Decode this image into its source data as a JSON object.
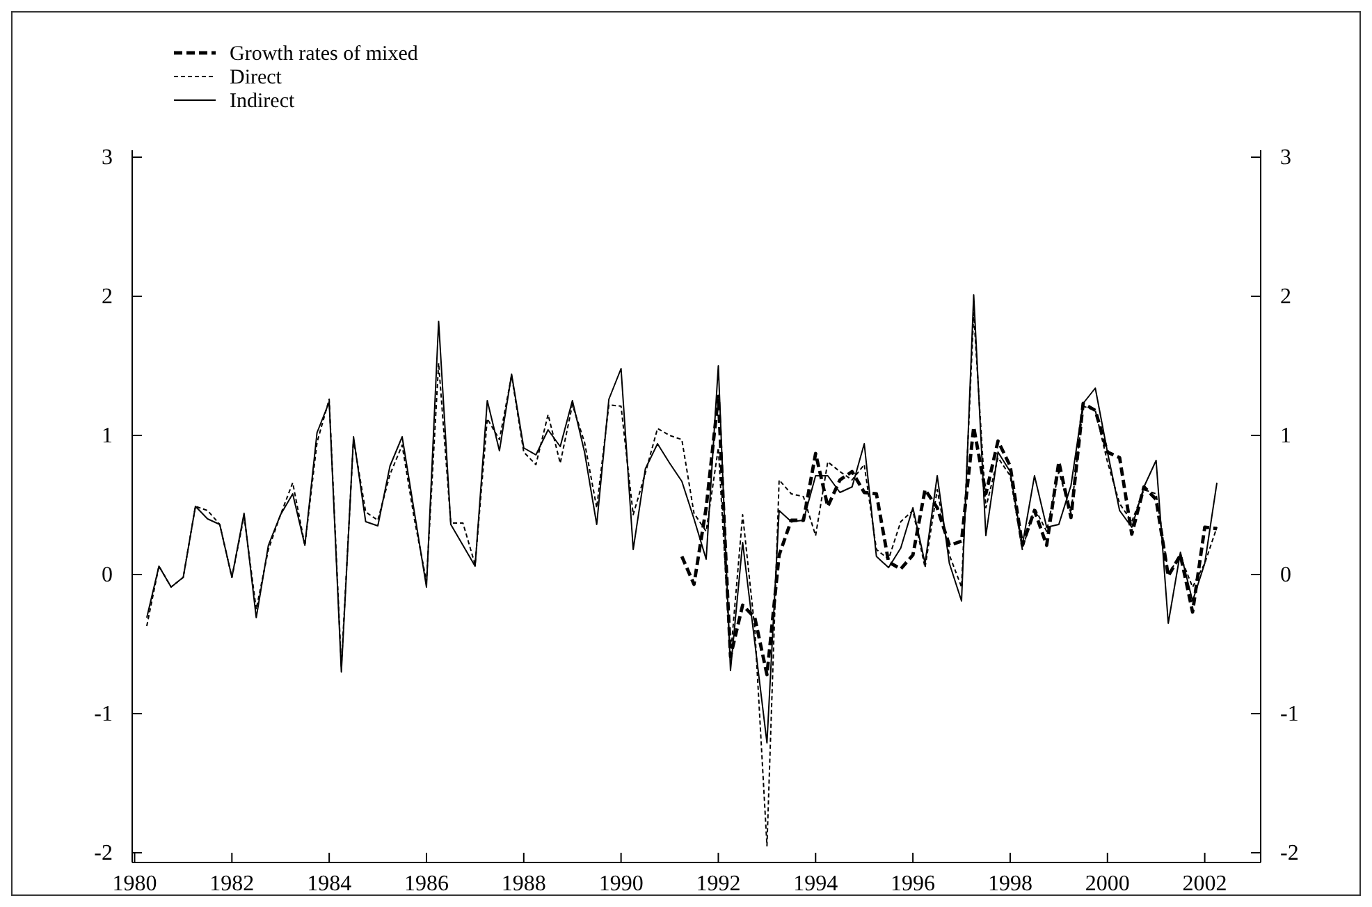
{
  "chart_data": {
    "type": "line",
    "x": [
      1980.25,
      1980.5,
      1980.75,
      1981,
      1981.25,
      1981.5,
      1981.75,
      1982,
      1982.25,
      1982.5,
      1982.75,
      1983,
      1983.25,
      1983.5,
      1983.75,
      1984,
      1984.25,
      1984.5,
      1984.75,
      1985,
      1985.25,
      1985.5,
      1985.75,
      1986,
      1986.25,
      1986.5,
      1986.75,
      1987,
      1987.25,
      1987.5,
      1987.75,
      1988,
      1988.25,
      1988.5,
      1988.75,
      1989,
      1989.25,
      1989.5,
      1989.75,
      1990,
      1990.25,
      1990.5,
      1990.75,
      1991,
      1991.25,
      1991.5,
      1991.75,
      1992,
      1992.25,
      1992.5,
      1992.75,
      1993,
      1993.25,
      1993.5,
      1993.75,
      1994,
      1994.25,
      1994.5,
      1994.75,
      1995,
      1995.25,
      1995.5,
      1995.75,
      1996,
      1996.25,
      1996.5,
      1996.75,
      1997,
      1997.25,
      1997.5,
      1997.75,
      1998,
      1998.25,
      1998.5,
      1998.75,
      1999,
      1999.25,
      1999.5,
      1999.75,
      2000,
      2000.25,
      2000.5,
      2000.75,
      2001,
      2001.25,
      2001.5,
      2001.75,
      2002,
      2002.25
    ],
    "series": [
      {
        "name": "Growth rates of mixed",
        "color": "#000000",
        "line_style": "dashed",
        "values": [
          null,
          null,
          null,
          null,
          null,
          null,
          null,
          null,
          null,
          null,
          null,
          null,
          null,
          null,
          null,
          null,
          null,
          null,
          null,
          null,
          null,
          null,
          null,
          null,
          null,
          null,
          null,
          null,
          null,
          null,
          null,
          null,
          null,
          null,
          null,
          null,
          null,
          null,
          null,
          null,
          null,
          null,
          null,
          null,
          0.13,
          -0.07,
          0.48,
          1.28,
          -0.59,
          -0.22,
          -0.31,
          -0.72,
          0.14,
          0.39,
          0.39,
          0.87,
          0.49,
          0.68,
          0.74,
          0.59,
          0.58,
          0.09,
          0.04,
          0.14,
          0.61,
          0.48,
          0.21,
          0.24,
          1.06,
          0.58,
          0.96,
          0.78,
          0.21,
          0.46,
          0.21,
          0.81,
          0.41,
          1.23,
          1.18,
          0.88,
          0.84,
          0.29,
          0.63,
          0.54,
          -0.01,
          0.14,
          -0.27,
          0.34,
          0.33
        ]
      },
      {
        "name": "Direct",
        "color": "#000000",
        "line_style": "dashed",
        "values": [
          -0.37,
          0.06,
          -0.09,
          -0.02,
          0.49,
          0.46,
          0.36,
          -0.02,
          0.42,
          -0.25,
          0.18,
          0.43,
          0.66,
          0.21,
          0.95,
          1.26,
          -0.66,
          0.97,
          0.45,
          0.39,
          0.72,
          0.93,
          0.4,
          -0.05,
          1.52,
          0.37,
          0.37,
          0.07,
          1.12,
          0.97,
          1.43,
          0.88,
          0.79,
          1.15,
          0.8,
          1.22,
          0.95,
          0.48,
          1.22,
          1.21,
          0.43,
          0.73,
          1.05,
          1.0,
          0.97,
          0.44,
          0.31,
          0.91,
          -0.59,
          0.43,
          -0.39,
          -1.95,
          0.68,
          0.58,
          0.56,
          0.28,
          0.81,
          0.74,
          0.68,
          0.79,
          0.18,
          0.11,
          0.38,
          0.46,
          0.05,
          0.61,
          0.14,
          -0.09,
          1.88,
          0.48,
          0.84,
          0.71,
          0.18,
          0.48,
          0.31,
          0.74,
          0.44,
          1.21,
          1.18,
          0.81,
          0.51,
          0.38,
          0.61,
          0.58,
          0.01,
          0.13,
          -0.09,
          0.08,
          0.34
        ]
      },
      {
        "name": "Indirect",
        "color": "#000000",
        "line_style": "solid",
        "values": [
          -0.31,
          0.06,
          -0.09,
          -0.02,
          0.49,
          0.4,
          0.36,
          -0.02,
          0.44,
          -0.31,
          0.21,
          0.43,
          0.58,
          0.21,
          1.02,
          1.24,
          -0.7,
          0.99,
          0.38,
          0.35,
          0.78,
          0.99,
          0.45,
          -0.09,
          1.82,
          0.36,
          0.21,
          0.06,
          1.25,
          0.89,
          1.44,
          0.91,
          0.86,
          1.04,
          0.92,
          1.25,
          0.88,
          0.36,
          1.26,
          1.48,
          0.18,
          0.76,
          0.94,
          0.8,
          0.67,
          0.4,
          0.11,
          1.5,
          -0.69,
          0.23,
          -0.49,
          -1.21,
          0.46,
          0.38,
          0.39,
          0.71,
          0.71,
          0.59,
          0.63,
          0.94,
          0.13,
          0.05,
          0.19,
          0.48,
          0.08,
          0.71,
          0.08,
          -0.19,
          2.01,
          0.28,
          0.88,
          0.74,
          0.21,
          0.71,
          0.34,
          0.36,
          0.64,
          1.23,
          1.34,
          0.88,
          0.46,
          0.34,
          0.63,
          0.82,
          -0.35,
          0.16,
          -0.19,
          0.08,
          0.66
        ]
      }
    ],
    "xlim": [
      1979.95,
      2003.15
    ],
    "xticks": [
      1980,
      1982,
      1984,
      1986,
      1988,
      1990,
      1992,
      1994,
      1996,
      1998,
      2000,
      2002
    ],
    "ylim": [
      -2.07,
      3.05
    ],
    "yticks": [
      -2,
      -1,
      0,
      1,
      2,
      3
    ],
    "y2lim": [
      -2.07,
      3.05
    ],
    "y2ticks": [
      -2,
      -1,
      0,
      1,
      2,
      3
    ],
    "legend": "top left",
    "grid": false,
    "marker": "none"
  }
}
